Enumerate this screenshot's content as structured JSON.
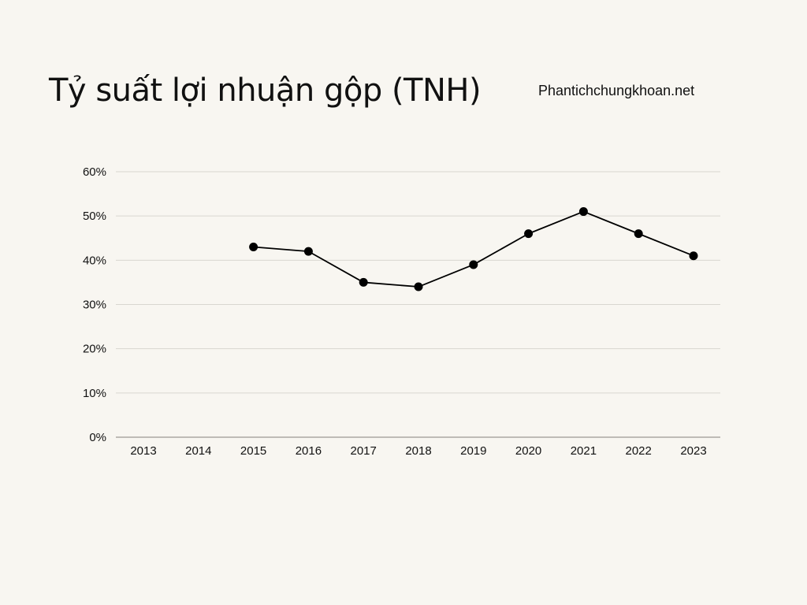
{
  "header": {
    "title": "Tỷ suất lợi nhuận gộp (TNH)",
    "brand": "Phantichchungkhoan.net"
  },
  "colors": {
    "background": "#f8f6f1",
    "line": "#000000",
    "grid": "#d9d6d0",
    "axis": "#9a9894"
  },
  "chart_data": {
    "type": "line",
    "title": "Tỷ suất lợi nhuận gộp (TNH)",
    "xlabel": "",
    "ylabel": "",
    "categories": [
      "2013",
      "2014",
      "2015",
      "2016",
      "2017",
      "2018",
      "2019",
      "2020",
      "2021",
      "2022",
      "2023"
    ],
    "series": [
      {
        "values": [
          null,
          null,
          43,
          42,
          35,
          34,
          39,
          46,
          51,
          46,
          41
        ]
      }
    ],
    "ylim": [
      0,
      60
    ],
    "yticks": [
      0,
      10,
      20,
      30,
      40,
      50,
      60
    ],
    "ytick_labels": [
      "0%",
      "10%",
      "20%",
      "30%",
      "40%",
      "50%",
      "60%"
    ],
    "grid": true,
    "legend": "none",
    "marker": "circle"
  }
}
